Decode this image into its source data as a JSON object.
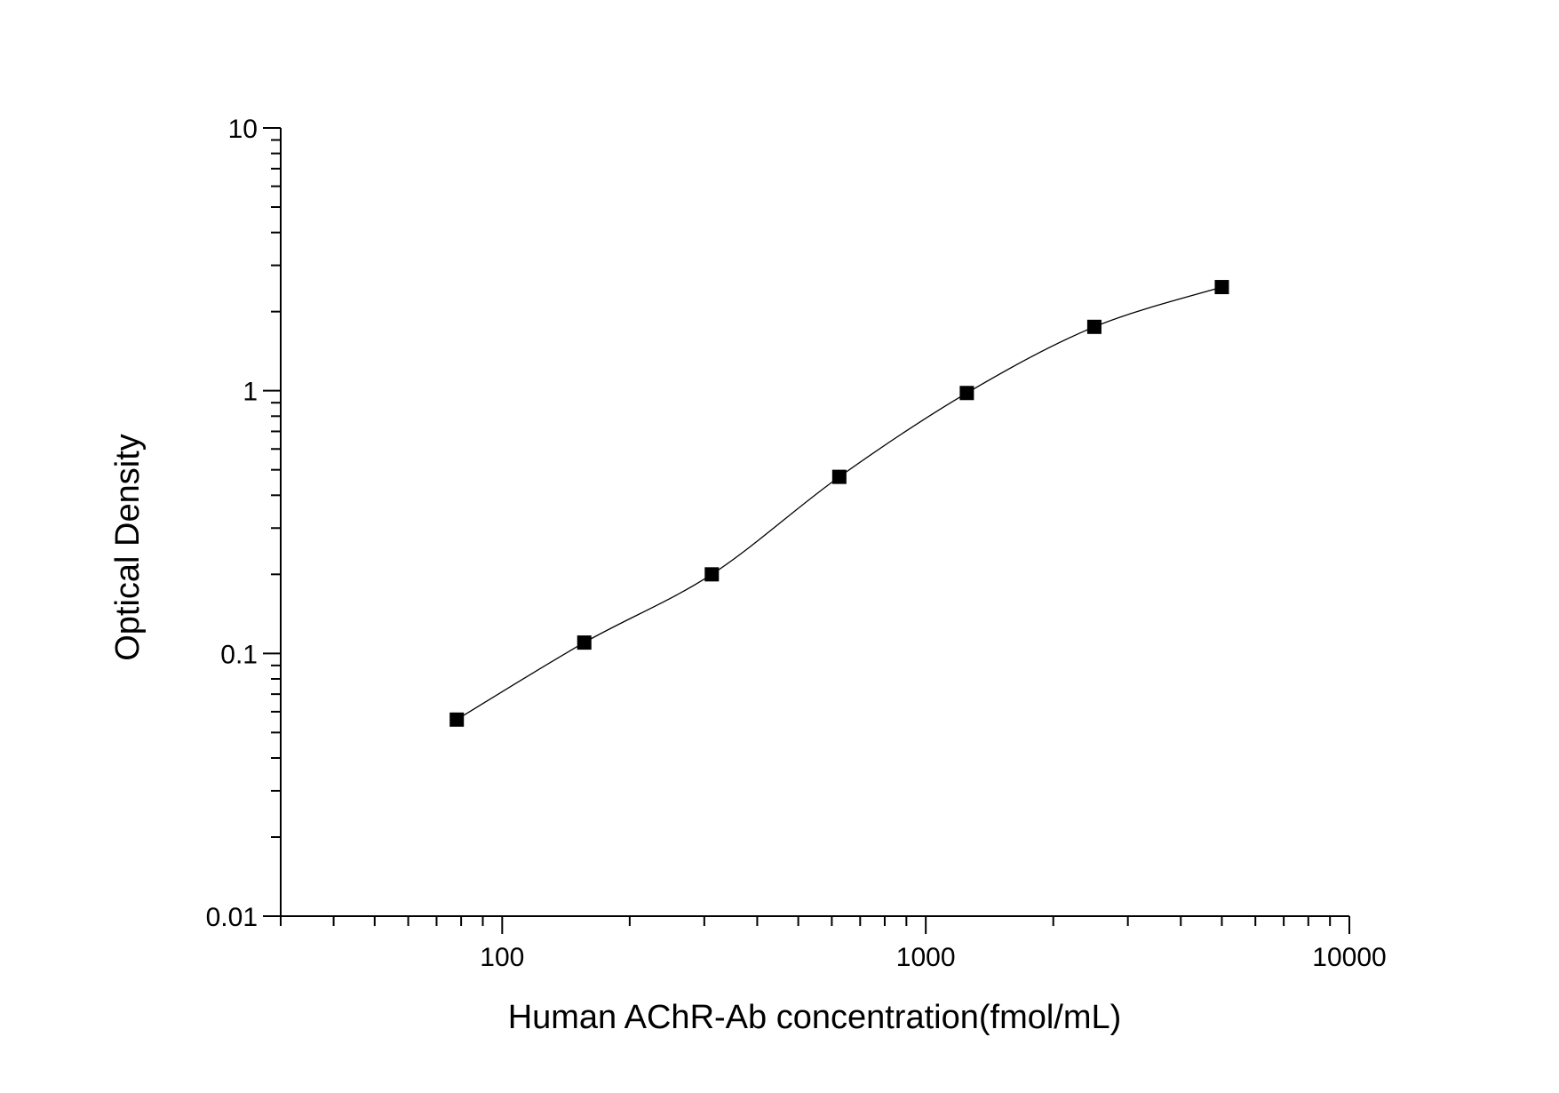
{
  "chart_data": {
    "type": "scatter",
    "x_label": "Human AChR-Ab concentration(fmol/mL)",
    "y_label": "Optical Density",
    "x": [
      78.125,
      156.25,
      312.5,
      625,
      1250,
      2500,
      5000
    ],
    "values": [
      0.056,
      0.11,
      0.2,
      0.47,
      0.98,
      1.75,
      2.48
    ],
    "color": "#000000",
    "fit_line": true,
    "x_log": true,
    "y_log": true,
    "xlim": [
      30,
      10000
    ],
    "ylim": [
      0.01,
      10
    ],
    "xticks": [
      100,
      1000,
      10000
    ],
    "yticks": [
      0.01,
      0.1,
      1,
      10
    ]
  }
}
